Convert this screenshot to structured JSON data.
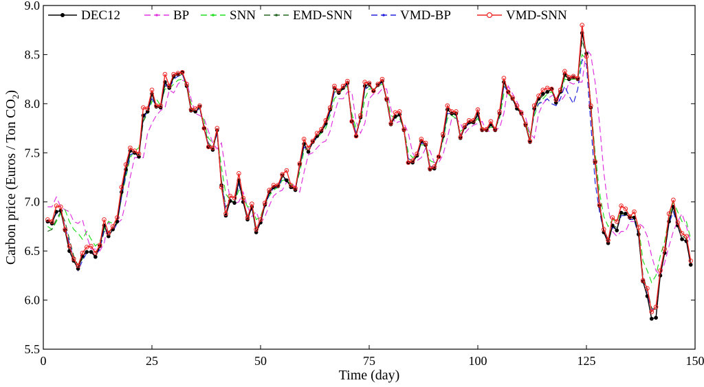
{
  "chart_data": {
    "type": "line",
    "xlabel": "Time (day)",
    "ylabel": {
      "main": "Carbon price (Euros / Ton CO",
      "sub": "2",
      "end": ")"
    },
    "xlim": [
      0,
      150
    ],
    "ylim": [
      5.5,
      9.0
    ],
    "xticks": [
      0,
      25,
      50,
      75,
      100,
      125,
      150
    ],
    "yticks": [
      5.5,
      6.0,
      6.5,
      7.0,
      7.5,
      8.0,
      8.5,
      9.0
    ],
    "xtick_labels": [
      "0",
      "25",
      "50",
      "75",
      "100",
      "125",
      "150"
    ],
    "ytick_labels": [
      "5.5",
      "6.0",
      "6.5",
      "7.0",
      "7.5",
      "8.0",
      "8.5",
      "9.0"
    ],
    "grid": false,
    "legend_position": "top",
    "x": [
      1,
      2,
      3,
      4,
      5,
      6,
      7,
      8,
      9,
      10,
      11,
      12,
      13,
      14,
      15,
      16,
      17,
      18,
      19,
      20,
      21,
      22,
      23,
      24,
      25,
      26,
      27,
      28,
      29,
      30,
      31,
      32,
      33,
      34,
      35,
      36,
      37,
      38,
      39,
      40,
      41,
      42,
      43,
      44,
      45,
      46,
      47,
      48,
      49,
      50,
      51,
      52,
      53,
      54,
      55,
      56,
      57,
      58,
      59,
      60,
      61,
      62,
      63,
      64,
      65,
      66,
      67,
      68,
      69,
      70,
      71,
      72,
      73,
      74,
      75,
      76,
      77,
      78,
      79,
      80,
      81,
      82,
      83,
      84,
      85,
      86,
      87,
      88,
      89,
      90,
      91,
      92,
      93,
      94,
      95,
      96,
      97,
      98,
      99,
      100,
      101,
      102,
      103,
      104,
      105,
      106,
      107,
      108,
      109,
      110,
      111,
      112,
      113,
      114,
      115,
      116,
      117,
      118,
      119,
      120,
      121,
      122,
      123,
      124,
      125,
      126,
      127,
      128,
      129,
      130,
      131,
      132,
      133,
      134,
      135,
      136,
      137,
      138,
      139,
      140,
      141,
      142,
      143,
      144,
      145,
      146,
      147,
      148,
      149
    ],
    "series": [
      {
        "name": "DEC12",
        "color": "#000000",
        "dash": "solid",
        "marker": "filled-circle",
        "values": [
          6.8,
          6.78,
          6.9,
          6.91,
          6.71,
          6.5,
          6.4,
          6.32,
          6.45,
          6.49,
          6.49,
          6.44,
          6.55,
          6.76,
          6.65,
          6.72,
          6.8,
          7.1,
          7.33,
          7.52,
          7.5,
          7.46,
          7.88,
          7.92,
          8.1,
          7.97,
          7.96,
          8.22,
          8.16,
          8.28,
          8.3,
          8.32,
          8.18,
          7.93,
          7.92,
          7.97,
          7.75,
          7.56,
          7.53,
          7.73,
          7.17,
          6.86,
          7.01,
          6.99,
          7.22,
          7.0,
          6.82,
          6.95,
          6.69,
          6.79,
          6.97,
          7.1,
          7.15,
          7.16,
          7.27,
          7.22,
          7.15,
          7.12,
          7.38,
          7.59,
          7.51,
          7.61,
          7.67,
          7.72,
          7.8,
          7.94,
          8.16,
          8.11,
          8.16,
          8.21,
          7.82,
          7.67,
          7.86,
          8.18,
          8.2,
          8.13,
          8.19,
          8.23,
          8.04,
          7.79,
          7.87,
          7.89,
          7.73,
          7.4,
          7.4,
          7.47,
          7.62,
          7.58,
          7.33,
          7.34,
          7.46,
          7.67,
          7.94,
          7.9,
          7.9,
          7.65,
          7.76,
          7.81,
          7.81,
          7.9,
          7.73,
          7.73,
          7.79,
          7.73,
          7.9,
          8.22,
          8.12,
          8.05,
          7.95,
          7.9,
          7.78,
          7.61,
          7.95,
          8.05,
          8.1,
          8.12,
          8.15,
          8.01,
          8.12,
          8.3,
          8.25,
          8.27,
          8.25,
          8.72,
          8.51,
          7.96,
          7.4,
          6.96,
          6.69,
          6.58,
          6.76,
          6.71,
          6.89,
          6.88,
          6.84,
          6.84,
          6.67,
          6.19,
          6.04,
          5.81,
          5.82,
          6.25,
          6.48,
          6.8,
          6.95,
          6.76,
          6.62,
          6.6,
          6.36
        ]
      },
      {
        "name": "BP",
        "color": "#e033e0",
        "dash": "dash",
        "marker": "dot",
        "values": [
          6.95,
          6.95,
          7.05,
          6.95,
          6.92,
          6.9,
          6.8,
          6.78,
          6.82,
          6.65,
          6.52,
          6.52,
          6.5,
          6.58,
          6.8,
          6.72,
          6.78,
          6.82,
          7.0,
          7.25,
          7.45,
          7.45,
          7.45,
          7.7,
          7.8,
          7.88,
          7.93,
          7.96,
          8.14,
          8.11,
          8.2,
          8.24,
          8.22,
          8.05,
          7.9,
          7.88,
          7.85,
          7.72,
          7.6,
          7.54,
          7.6,
          7.3,
          7.02,
          6.98,
          7.0,
          7.1,
          6.95,
          6.85,
          6.9,
          6.78,
          6.85,
          6.96,
          7.06,
          7.1,
          7.12,
          7.2,
          7.2,
          7.15,
          7.1,
          7.3,
          7.48,
          7.5,
          7.55,
          7.6,
          7.62,
          7.72,
          7.9,
          8.05,
          8.05,
          8.12,
          8.12,
          7.82,
          7.7,
          7.8,
          8.05,
          8.1,
          8.1,
          8.15,
          8.15,
          7.95,
          7.8,
          7.82,
          7.8,
          7.7,
          7.5,
          7.42,
          7.45,
          7.55,
          7.52,
          7.4,
          7.4,
          7.48,
          7.65,
          7.85,
          7.85,
          7.8,
          7.7,
          7.75,
          7.78,
          7.8,
          7.82,
          7.72,
          7.72,
          7.74,
          7.75,
          7.9,
          8.18,
          8.1,
          8.02,
          7.92,
          7.86,
          7.7,
          7.65,
          7.9,
          8.0,
          8.05,
          8.08,
          8.1,
          8.02,
          8.08,
          8.22,
          8.2,
          8.22,
          8.22,
          8.55,
          8.5,
          8.22,
          7.8,
          7.3,
          6.95,
          6.7,
          6.65,
          6.7,
          6.7,
          6.8,
          6.8,
          6.78,
          6.75,
          6.65,
          6.45,
          6.3,
          6.25,
          6.38,
          6.55,
          6.7,
          6.8,
          6.88,
          6.75,
          6.58
        ]
      },
      {
        "name": "SNN",
        "color": "#22dd22",
        "dash": "dash",
        "marker": "dot",
        "values": [
          6.75,
          6.72,
          6.8,
          6.88,
          6.92,
          6.8,
          6.72,
          6.68,
          6.62,
          6.7,
          6.62,
          6.55,
          6.6,
          6.72,
          6.8,
          6.78,
          6.82,
          7.05,
          7.25,
          7.45,
          7.52,
          7.55,
          7.82,
          7.9,
          8.02,
          8.05,
          7.98,
          8.15,
          8.15,
          8.2,
          8.24,
          8.25,
          8.2,
          8.0,
          7.92,
          7.95,
          7.82,
          7.65,
          7.6,
          7.68,
          7.35,
          7.08,
          7.02,
          7.0,
          7.12,
          7.05,
          6.95,
          6.95,
          6.82,
          6.85,
          6.98,
          7.06,
          7.12,
          7.15,
          7.22,
          7.22,
          7.18,
          7.15,
          7.3,
          7.52,
          7.55,
          7.6,
          7.65,
          7.7,
          7.75,
          7.88,
          8.05,
          8.1,
          8.15,
          8.18,
          7.9,
          7.75,
          7.82,
          8.05,
          8.15,
          8.15,
          8.18,
          8.2,
          8.08,
          7.88,
          7.85,
          7.85,
          7.75,
          7.5,
          7.45,
          7.48,
          7.58,
          7.58,
          7.42,
          7.4,
          7.45,
          7.62,
          7.85,
          7.88,
          7.85,
          7.72,
          7.75,
          7.8,
          7.8,
          7.85,
          7.75,
          7.74,
          7.76,
          7.75,
          7.85,
          8.1,
          8.1,
          8.05,
          7.96,
          7.9,
          7.8,
          7.68,
          7.88,
          8.0,
          8.05,
          8.1,
          8.12,
          8.05,
          8.1,
          8.25,
          8.24,
          8.25,
          8.25,
          8.5,
          8.45,
          8.0,
          7.5,
          7.1,
          6.85,
          6.75,
          6.82,
          6.8,
          6.9,
          6.88,
          6.85,
          6.85,
          6.75,
          6.4,
          6.3,
          6.18,
          6.25,
          6.45,
          6.6,
          6.85,
          7.0,
          6.9,
          6.8,
          6.8,
          6.62
        ]
      },
      {
        "name": "EMD-SNN",
        "color": "#226622",
        "dash": "dash",
        "marker": "dot",
        "values": [
          6.7,
          6.72,
          6.82,
          6.9,
          6.8,
          6.62,
          6.45,
          6.35,
          6.42,
          6.48,
          6.5,
          6.48,
          6.52,
          6.7,
          6.7,
          6.72,
          6.78,
          7.05,
          7.3,
          7.48,
          7.5,
          7.48,
          7.82,
          7.92,
          8.05,
          7.98,
          7.96,
          8.18,
          8.18,
          8.26,
          8.28,
          8.3,
          8.2,
          7.96,
          7.92,
          7.96,
          7.78,
          7.6,
          7.55,
          7.7,
          7.22,
          6.95,
          7.0,
          7.0,
          7.18,
          7.02,
          6.86,
          6.94,
          6.74,
          6.8,
          6.96,
          7.08,
          7.14,
          7.16,
          7.25,
          7.22,
          7.16,
          7.13,
          7.35,
          7.56,
          7.52,
          7.6,
          7.66,
          7.72,
          7.78,
          7.92,
          8.12,
          8.12,
          8.16,
          8.2,
          7.86,
          7.7,
          7.84,
          8.14,
          8.18,
          8.14,
          8.18,
          8.22,
          8.06,
          7.82,
          7.86,
          7.88,
          7.74,
          7.44,
          7.42,
          7.47,
          7.6,
          7.58,
          7.36,
          7.36,
          7.46,
          7.65,
          7.9,
          7.9,
          7.88,
          7.68,
          7.75,
          7.8,
          7.8,
          7.88,
          7.74,
          7.73,
          7.78,
          7.74,
          7.88,
          8.18,
          8.12,
          8.06,
          7.96,
          7.9,
          7.79,
          7.64,
          7.93,
          8.04,
          8.08,
          8.12,
          8.14,
          8.04,
          8.12,
          8.28,
          8.26,
          8.26,
          8.26,
          8.65,
          8.48,
          8.0,
          7.45,
          7.0,
          6.72,
          6.62,
          6.76,
          6.74,
          6.88,
          6.86,
          6.84,
          6.84,
          6.7,
          6.25,
          6.1,
          5.92,
          5.9,
          6.3,
          6.5,
          6.82,
          6.96,
          6.8,
          6.66,
          6.62,
          6.38
        ]
      },
      {
        "name": "VMD-BP",
        "color": "#2222dd",
        "dash": "dash",
        "marker": "dot",
        "values": [
          6.82,
          6.8,
          6.88,
          6.92,
          6.75,
          6.58,
          6.42,
          6.3,
          6.4,
          6.48,
          6.5,
          6.45,
          6.52,
          6.72,
          6.68,
          6.7,
          6.78,
          7.05,
          7.28,
          7.48,
          7.5,
          7.48,
          7.85,
          7.92,
          8.05,
          7.98,
          7.95,
          8.2,
          8.15,
          8.25,
          8.28,
          8.3,
          8.18,
          7.95,
          7.92,
          7.95,
          7.76,
          7.58,
          7.55,
          7.7,
          7.2,
          6.92,
          7.0,
          7.0,
          7.18,
          7.02,
          6.85,
          6.93,
          6.72,
          6.8,
          6.95,
          7.08,
          7.14,
          7.15,
          7.24,
          7.22,
          7.15,
          7.12,
          7.36,
          7.56,
          7.52,
          7.6,
          7.66,
          7.72,
          7.78,
          7.92,
          8.12,
          8.12,
          8.15,
          8.2,
          7.85,
          7.7,
          7.85,
          8.15,
          8.18,
          8.14,
          8.18,
          8.22,
          8.05,
          7.82,
          7.86,
          7.88,
          7.74,
          7.44,
          7.42,
          7.46,
          7.6,
          7.58,
          7.36,
          7.36,
          7.46,
          7.65,
          7.9,
          7.9,
          7.88,
          7.68,
          7.75,
          7.8,
          7.8,
          7.88,
          7.74,
          7.73,
          7.78,
          7.74,
          7.88,
          8.18,
          8.12,
          8.06,
          7.96,
          7.9,
          7.78,
          7.62,
          7.92,
          8.0,
          8.02,
          8.05,
          8.0,
          7.98,
          8.05,
          8.18,
          8.08,
          8.0,
          8.15,
          8.45,
          8.4,
          7.8,
          7.2,
          6.9,
          6.7,
          6.6,
          6.74,
          6.72,
          6.86,
          6.86,
          6.82,
          6.82,
          6.65,
          6.22,
          6.05,
          5.9,
          5.92,
          6.28,
          6.48,
          6.78,
          6.9,
          6.75,
          6.62,
          6.6,
          6.35
        ]
      },
      {
        "name": "VMD-SNN",
        "color": "#ee2222",
        "dash": "solid",
        "marker": "open-circle",
        "values": [
          6.82,
          6.8,
          6.96,
          6.95,
          6.72,
          6.55,
          6.42,
          6.35,
          6.48,
          6.54,
          6.55,
          6.48,
          6.56,
          6.82,
          6.68,
          6.75,
          6.84,
          7.15,
          7.38,
          7.55,
          7.52,
          7.49,
          7.96,
          7.95,
          8.14,
          7.98,
          7.98,
          8.3,
          8.18,
          8.3,
          8.31,
          8.32,
          8.2,
          7.94,
          7.95,
          7.98,
          7.75,
          7.56,
          7.55,
          7.75,
          7.15,
          6.88,
          7.06,
          7.04,
          7.29,
          7.04,
          6.84,
          6.98,
          6.72,
          6.82,
          6.99,
          7.12,
          7.17,
          7.17,
          7.28,
          7.32,
          7.17,
          7.14,
          7.39,
          7.64,
          7.55,
          7.62,
          7.7,
          7.74,
          7.83,
          7.96,
          8.18,
          8.13,
          8.18,
          8.23,
          7.82,
          7.67,
          7.88,
          8.22,
          8.21,
          8.13,
          8.2,
          8.25,
          8.05,
          7.8,
          7.91,
          7.92,
          7.74,
          7.4,
          7.42,
          7.49,
          7.64,
          7.6,
          7.34,
          7.36,
          7.46,
          7.69,
          7.98,
          7.92,
          7.92,
          7.66,
          7.78,
          7.83,
          7.83,
          7.94,
          7.74,
          7.74,
          7.82,
          7.74,
          7.92,
          8.26,
          8.12,
          8.06,
          7.98,
          7.91,
          7.79,
          7.62,
          7.98,
          8.08,
          8.14,
          8.16,
          8.15,
          8.04,
          8.14,
          8.33,
          8.27,
          8.28,
          8.26,
          8.8,
          8.48,
          7.98,
          7.41,
          6.97,
          6.72,
          6.61,
          6.84,
          6.8,
          6.96,
          6.93,
          6.85,
          6.9,
          6.74,
          6.2,
          6.12,
          5.88,
          5.93,
          6.3,
          6.52,
          6.88,
          7.02,
          6.79,
          6.68,
          6.65,
          6.4
        ]
      }
    ]
  }
}
